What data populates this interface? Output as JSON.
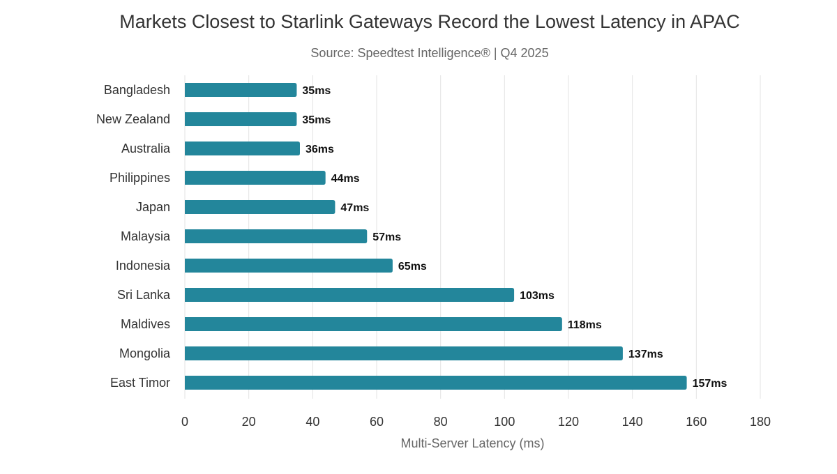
{
  "chart_data": {
    "type": "bar",
    "orientation": "horizontal",
    "title": "Markets Closest to Starlink Gateways Record the Lowest Latency in APAC",
    "subtitle": "Source: Speedtest Intelligence® | Q4 2025",
    "xlabel": "Multi-Server Latency (ms)",
    "ylabel": "",
    "categories": [
      "Bangladesh",
      "New Zealand",
      "Australia",
      "Philippines",
      "Japan",
      "Malaysia",
      "Indonesia",
      "Sri Lanka",
      "Maldives",
      "Mongolia",
      "East Timor"
    ],
    "values": [
      35,
      35,
      36,
      44,
      47,
      57,
      65,
      103,
      118,
      137,
      157
    ],
    "data_labels": [
      "35ms",
      "35ms",
      "36ms",
      "44ms",
      "47ms",
      "57ms",
      "65ms",
      "103ms",
      "118ms",
      "137ms",
      "157ms"
    ],
    "xlim": [
      0,
      180
    ],
    "xticks": [
      0,
      20,
      40,
      60,
      80,
      100,
      120,
      140,
      160,
      180
    ],
    "grid": "vertical",
    "legend": "none",
    "bar_color": "#23869b"
  }
}
